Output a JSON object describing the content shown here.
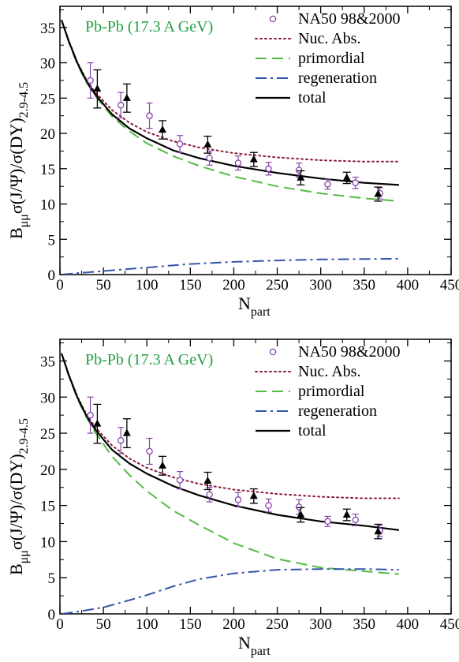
{
  "chart_data": [
    {
      "type": "line",
      "annotation": "Pb-Pb (17.3 A GeV)",
      "annotation_color": "#22a044",
      "ylabel": "B_μμ σ(J/Ψ)/σ(DY)_2.9-4.5",
      "ylabel_parts": {
        "main": "B",
        "sub1": "μμ",
        "mid": "σ(J/Ψ)/σ(DY)",
        "sub2": "2.9-4.5"
      },
      "xlabel_parts": {
        "main": "N",
        "sub": "part"
      },
      "xlim": [
        0,
        450
      ],
      "ylim": [
        0,
        38
      ],
      "xticks": [
        "0",
        "50",
        "100",
        "150",
        "200",
        "250",
        "300",
        "350",
        "400",
        "450"
      ],
      "yticks": [
        "0",
        "5",
        "10",
        "15",
        "20",
        "25",
        "30",
        "35"
      ],
      "legend_position": "top-right",
      "legend": [
        "NA50 98&2000",
        "Nuc. Abs.",
        "primordial",
        "regeneration",
        "total"
      ],
      "series": [
        {
          "name": "Nuc. Abs.",
          "style": "dotted",
          "color": "#8b1a3c",
          "x": [
            2,
            10,
            20,
            30,
            40,
            60,
            80,
            100,
            130,
            160,
            200,
            250,
            300,
            350,
            390
          ],
          "y": [
            36.0,
            33.2,
            30.1,
            27.7,
            25.9,
            23.3,
            21.5,
            20.2,
            18.9,
            18.0,
            17.2,
            16.6,
            16.2,
            16.0,
            16.0
          ]
        },
        {
          "name": "primordial",
          "style": "dashed",
          "color": "#55bb44",
          "x": [
            2,
            10,
            20,
            30,
            40,
            60,
            80,
            100,
            130,
            160,
            200,
            250,
            300,
            350,
            390
          ],
          "y": [
            36.0,
            33.0,
            29.8,
            27.3,
            25.4,
            22.4,
            20.3,
            18.6,
            16.8,
            15.4,
            13.9,
            12.5,
            11.5,
            10.8,
            10.4
          ]
        },
        {
          "name": "regeneration",
          "style": "dashdot",
          "color": "#3355aa",
          "x": [
            2,
            20,
            50,
            100,
            150,
            200,
            250,
            300,
            350,
            390
          ],
          "y": [
            0.0,
            0.2,
            0.5,
            1.0,
            1.5,
            1.8,
            2.0,
            2.15,
            2.2,
            2.25
          ]
        },
        {
          "name": "total",
          "style": "solid",
          "color": "#000000",
          "x": [
            2,
            10,
            20,
            30,
            40,
            60,
            80,
            100,
            130,
            160,
            200,
            250,
            300,
            350,
            390
          ],
          "y": [
            36.0,
            33.1,
            30.0,
            27.5,
            25.6,
            22.7,
            20.7,
            19.3,
            17.6,
            16.5,
            15.4,
            14.4,
            13.6,
            13.0,
            12.7
          ]
        }
      ],
      "data_points": {
        "circles": {
          "name": "NA50 98&2000",
          "color": "#8844aa",
          "x": [
            35,
            70,
            103,
            138,
            172,
            205,
            240,
            275,
            308,
            340,
            368
          ],
          "y": [
            27.5,
            24.0,
            22.5,
            18.5,
            16.5,
            15.8,
            15.0,
            14.8,
            12.8,
            13.0,
            11.5
          ],
          "err": [
            2.5,
            1.8,
            1.8,
            1.2,
            1.0,
            1.0,
            0.9,
            1.0,
            0.7,
            0.8,
            0.8
          ]
        },
        "triangles": {
          "color": "#000000",
          "x": [
            43,
            77,
            118,
            170,
            223,
            277,
            330,
            366
          ],
          "y": [
            26.3,
            25.0,
            20.5,
            18.4,
            16.3,
            13.7,
            13.7,
            11.4
          ],
          "err": [
            2.7,
            2.0,
            1.3,
            1.2,
            1.0,
            1.0,
            0.8,
            1.0
          ]
        }
      }
    },
    {
      "type": "line",
      "annotation": "Pb-Pb (17.3 A GeV)",
      "annotation_color": "#22a044",
      "ylabel": "B_μμ σ(J/Ψ)/σ(DY)_2.9-4.5",
      "ylabel_parts": {
        "main": "B",
        "sub1": "μμ",
        "mid": "σ(J/Ψ)/σ(DY)",
        "sub2": "2.9-4.5"
      },
      "xlabel_parts": {
        "main": "N",
        "sub": "part"
      },
      "xlim": [
        0,
        450
      ],
      "ylim": [
        0,
        38
      ],
      "xticks": [
        "0",
        "50",
        "100",
        "150",
        "200",
        "250",
        "300",
        "350",
        "400",
        "450"
      ],
      "yticks": [
        "0",
        "5",
        "10",
        "15",
        "20",
        "25",
        "30",
        "35"
      ],
      "legend_position": "top-right",
      "legend": [
        "NA50 98&2000",
        "Nuc. Abs.",
        "primordial",
        "regeneration",
        "total"
      ],
      "series": [
        {
          "name": "Nuc. Abs.",
          "style": "dotted",
          "color": "#8b1a3c",
          "x": [
            2,
            10,
            20,
            30,
            40,
            60,
            80,
            100,
            130,
            160,
            200,
            250,
            300,
            350,
            390
          ],
          "y": [
            36.0,
            33.2,
            30.1,
            27.7,
            25.9,
            23.3,
            21.5,
            20.2,
            18.9,
            18.0,
            17.2,
            16.6,
            16.2,
            16.0,
            16.0
          ]
        },
        {
          "name": "primordial",
          "style": "dashed",
          "color": "#55bb44",
          "x": [
            2,
            10,
            20,
            30,
            40,
            60,
            80,
            100,
            130,
            160,
            200,
            250,
            300,
            350,
            390
          ],
          "y": [
            36.0,
            33.0,
            29.8,
            27.3,
            25.2,
            21.8,
            19.2,
            17.0,
            14.3,
            12.3,
            9.8,
            7.6,
            6.4,
            5.9,
            5.5
          ]
        },
        {
          "name": "regeneration",
          "style": "dashdot",
          "color": "#3355aa",
          "x": [
            2,
            20,
            50,
            80,
            100,
            130,
            160,
            200,
            250,
            300,
            350,
            390
          ],
          "y": [
            0.0,
            0.3,
            0.9,
            1.9,
            2.6,
            3.8,
            4.8,
            5.6,
            6.1,
            6.2,
            6.2,
            6.1
          ]
        },
        {
          "name": "total",
          "style": "solid",
          "color": "#000000",
          "x": [
            2,
            10,
            20,
            30,
            40,
            60,
            80,
            100,
            130,
            160,
            200,
            250,
            300,
            350,
            390
          ],
          "y": [
            36.0,
            33.1,
            30.0,
            27.5,
            25.6,
            22.7,
            20.8,
            19.4,
            17.7,
            16.4,
            15.0,
            13.7,
            12.8,
            12.2,
            11.6
          ]
        }
      ],
      "data_points": {
        "circles": {
          "name": "NA50 98&2000",
          "color": "#8844aa",
          "x": [
            35,
            70,
            103,
            138,
            172,
            205,
            240,
            275,
            308,
            340,
            368
          ],
          "y": [
            27.5,
            24.0,
            22.5,
            18.5,
            16.5,
            15.8,
            15.0,
            14.8,
            12.8,
            13.0,
            11.5
          ],
          "err": [
            2.5,
            1.8,
            1.8,
            1.2,
            1.0,
            1.0,
            0.9,
            1.0,
            0.7,
            0.8,
            0.8
          ]
        },
        "triangles": {
          "color": "#000000",
          "x": [
            43,
            77,
            118,
            170,
            223,
            277,
            330,
            366
          ],
          "y": [
            26.3,
            25.0,
            20.5,
            18.4,
            16.3,
            13.7,
            13.7,
            11.4
          ],
          "err": [
            2.7,
            2.0,
            1.3,
            1.2,
            1.0,
            1.0,
            0.8,
            1.0
          ]
        }
      }
    }
  ]
}
